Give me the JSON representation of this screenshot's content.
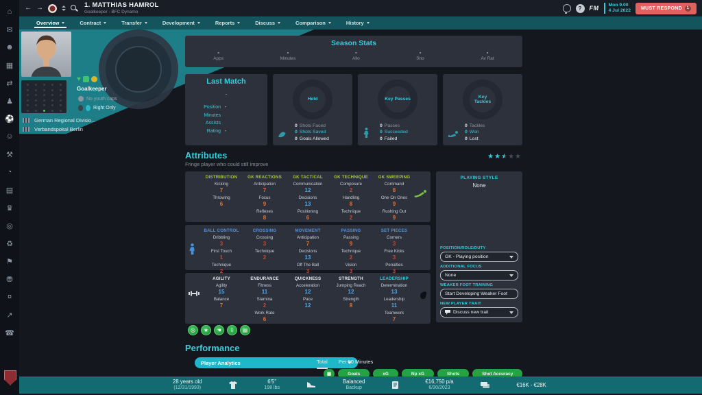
{
  "theme": {
    "accent_teal": "#35cdd8",
    "wedge_teal": "#1e7e87",
    "tabstrip_teal": "#14545c",
    "bottombar_teal": "#136b71",
    "card_bg": "#2c313c",
    "page_bg": "#14171e",
    "attr_low": "#c94732",
    "attr_mid": "#e0702f",
    "attr_high": "#4fa8e8",
    "must_respond_red": "#e2615e",
    "pill_green": "#25a244"
  },
  "header": {
    "title": "1. MATTHIAS HAMROL",
    "subtitle": "Goalkeeper - BFC Dynamo",
    "clock_line1": "Mon 9.00",
    "clock_line2": "4 Jul 2022",
    "must_respond": "MUST RESPOND",
    "must_respond_badge": "1",
    "fm_logo": "FM"
  },
  "nav_tabs": [
    "Overview",
    "Contract",
    "Transfer",
    "Development",
    "Reports",
    "Discuss",
    "Comparison",
    "History"
  ],
  "sidebar": {
    "icons": [
      {
        "name": "home",
        "glyph": "⌂"
      },
      {
        "name": "inbox",
        "glyph": "✉"
      },
      {
        "name": "squad",
        "glyph": "☻"
      },
      {
        "name": "tactics",
        "glyph": "▦"
      },
      {
        "name": "transfers",
        "glyph": "⇄"
      },
      {
        "name": "dynamics",
        "glyph": "♟"
      },
      {
        "name": "club",
        "glyph": "⚽"
      },
      {
        "name": "staff",
        "glyph": "☺"
      },
      {
        "name": "training",
        "glyph": "⚒"
      },
      {
        "name": "data-hub",
        "glyph": "◔"
      },
      {
        "name": "schedule",
        "glyph": "▤"
      },
      {
        "name": "competitions",
        "glyph": "♛"
      },
      {
        "name": "scouting",
        "glyph": "◎"
      },
      {
        "name": "world",
        "glyph": "♻"
      },
      {
        "name": "club-vision",
        "glyph": "⚑"
      },
      {
        "name": "finances",
        "glyph": "⛃"
      },
      {
        "name": "transactions",
        "glyph": "¤"
      },
      {
        "name": "analysis",
        "glyph": "↗"
      },
      {
        "name": "social",
        "glyph": "☎"
      }
    ]
  },
  "player_panel": {
    "position": "Goalkeeper",
    "youth_caps": "No youth caps",
    "foot": "Right Only",
    "status_icons": [
      {
        "name": "morale-heart-icon",
        "type": "heart"
      },
      {
        "name": "condition-icon",
        "type": "square"
      },
      {
        "name": "match-sharpness-icon",
        "type": "circle"
      }
    ],
    "competitions": [
      "German Regional Divisio...",
      "Verbandspokal Berlin"
    ]
  },
  "season_stats": {
    "title": "Season Stats",
    "items": [
      {
        "value": "-",
        "label": "Apps"
      },
      {
        "value": "-",
        "label": "Minutes"
      },
      {
        "value": "-",
        "label": "Allo"
      },
      {
        "value": "-",
        "label": "Sho"
      },
      {
        "value": "-",
        "label": "Av Rat"
      }
    ]
  },
  "last_match": {
    "title": "Last Match",
    "opponent": "-",
    "rows": [
      {
        "label": "Position",
        "value": "-"
      },
      {
        "label": "Minutes",
        "value": ""
      },
      {
        "label": "Assists",
        "value": ""
      },
      {
        "label": "Rating",
        "value": "-"
      }
    ]
  },
  "donut_cards": [
    {
      "title": "Held",
      "icon": "glove",
      "legend": [
        {
          "value": "0",
          "label": "Shots Faced",
          "tone": "muted"
        },
        {
          "value": "0",
          "label": "Shots Saved",
          "tone": "accent"
        },
        {
          "value": "0",
          "label": "Goals Allowed",
          "tone": "plain"
        }
      ]
    },
    {
      "title": "Key Passes",
      "icon": "player",
      "legend": [
        {
          "value": "0",
          "label": "Passes",
          "tone": "muted"
        },
        {
          "value": "0",
          "label": "Succeeded",
          "tone": "accent"
        },
        {
          "value": "0",
          "label": "Failed",
          "tone": "plain"
        }
      ]
    },
    {
      "title": "Key Tackles",
      "icon": "tackle",
      "legend": [
        {
          "value": "0",
          "label": "Tackles",
          "tone": "muted"
        },
        {
          "value": "0",
          "label": "Won",
          "tone": "accent"
        },
        {
          "value": "0",
          "label": "Lost",
          "tone": "plain"
        }
      ]
    }
  ],
  "attributes": {
    "title": "Attributes",
    "subtitle": "Fringe player who could still improve",
    "stars": 2.5,
    "blocks": [
      {
        "theme": "gk",
        "cls": "blk1",
        "icon_right": "diving-keeper-icon",
        "groups": [
          {
            "header": "DISTRIBUTION",
            "attrs": [
              [
                "Kicking",
                7
              ],
              [
                "Throwing",
                6
              ]
            ]
          },
          {
            "header": "GK REACTIONS",
            "attrs": [
              [
                "Anticipation",
                7
              ],
              [
                "Focus",
                9
              ],
              [
                "Reflexes",
                8
              ]
            ]
          },
          {
            "header": "GK TACTICAL",
            "attrs": [
              [
                "Communication",
                12
              ],
              [
                "Decisions",
                13
              ],
              [
                "Positioning",
                6
              ]
            ]
          },
          {
            "header": "GK TECHNIQUE",
            "attrs": [
              [
                "Composure",
                2
              ],
              [
                "Handling",
                8
              ],
              [
                "Technique",
                2
              ]
            ]
          },
          {
            "header": "GK SWEEPING",
            "attrs": [
              [
                "Command",
                8
              ],
              [
                "One On Ones",
                9
              ],
              [
                "Rushing Out",
                9
              ]
            ]
          }
        ]
      },
      {
        "theme": "tec",
        "cls": "blk2",
        "icon_left": "outfield-player-icon",
        "groups": [
          {
            "header": "BALL CONTROL",
            "attrs": [
              [
                "Dribbling",
                3
              ],
              [
                "First Touch",
                1
              ],
              [
                "Technique",
                2
              ]
            ]
          },
          {
            "header": "CROSSING",
            "attrs": [
              [
                "Crossing",
                3
              ],
              [
                "Technique",
                2
              ]
            ]
          },
          {
            "header": "MOVEMENT",
            "attrs": [
              [
                "Anticipation",
                7
              ],
              [
                "Decisions",
                13
              ],
              [
                "Off The Ball",
                3
              ]
            ]
          },
          {
            "header": "PASSING",
            "attrs": [
              [
                "Passing",
                9
              ],
              [
                "Technique",
                2
              ],
              [
                "Vision",
                3
              ]
            ]
          },
          {
            "header": "SET PIECES",
            "attrs": [
              [
                "Corners",
                3
              ],
              [
                "Free Kicks",
                3
              ],
              [
                "Penalties",
                3
              ]
            ]
          }
        ]
      },
      {
        "theme": "phy",
        "cls": "blk3",
        "icon_left": "dumbbell-icon",
        "icon_right": "fist-icon",
        "groups": [
          {
            "header": "AGILITY",
            "attrs": [
              [
                "Agility",
                15
              ],
              [
                "Balance",
                7
              ]
            ]
          },
          {
            "header": "ENDURANCE",
            "attrs": [
              [
                "Fitness",
                11
              ],
              [
                "Stamina",
                2
              ],
              [
                "Work Rate",
                6
              ]
            ]
          },
          {
            "header": "QUICKNESS",
            "attrs": [
              [
                "Acceleration",
                12
              ],
              [
                "Pace",
                12
              ]
            ]
          },
          {
            "header": "STRENGTH",
            "attrs": [
              [
                "Jumping Reach",
                12
              ],
              [
                "Strength",
                8
              ]
            ]
          },
          {
            "header": "LEADERSHIP",
            "accent": true,
            "attrs": [
              [
                "Determination",
                13
              ],
              [
                "Leadership",
                11
              ],
              [
                "Teamwork",
                7
              ]
            ]
          }
        ]
      }
    ]
  },
  "right_panel": {
    "playing_style_label": "PLAYING STYLE",
    "playing_style_value": "None",
    "controls": [
      {
        "label": "POSITION/ROLE/DUTY",
        "value": "GK - Playing position",
        "type": "select"
      },
      {
        "label": "ADDITIONAL FOCUS",
        "value": "None",
        "type": "select"
      },
      {
        "label": "WEAKER FOOT TRAINING",
        "value": "Start Developing Weaker Foot",
        "type": "button"
      },
      {
        "label": "NEW PLAYER TRAIT",
        "value": "Discuss new trait",
        "type": "select",
        "icon": "speech-bubble-icon"
      }
    ]
  },
  "badges": [
    {
      "name": "target-badge",
      "glyph": "◎"
    },
    {
      "name": "star-badge",
      "glyph": "★"
    },
    {
      "name": "glove-badge",
      "glyph": "☚"
    },
    {
      "name": "signing-badge",
      "glyph": "⇩"
    },
    {
      "name": "report-badge",
      "glyph": "▤"
    }
  ],
  "performance": {
    "title": "Performance",
    "dropdown": "Player Analytics",
    "tabs": [
      {
        "label": "Total",
        "active": true
      },
      {
        "label": "Per 90 Minutes",
        "active": false
      }
    ],
    "pills": [
      "Goals",
      "xG",
      "Np xG",
      "Shots",
      "Shot Accuracy"
    ]
  },
  "bottom_bar": {
    "items": [
      {
        "type": "text",
        "line1": "28 years old",
        "line2": "(12/31/1993)",
        "name": "age"
      },
      {
        "type": "icon",
        "icon": "shirt",
        "name": "shirt-icon"
      },
      {
        "type": "text",
        "line1": "6'5\"",
        "line2": "198 lbs",
        "name": "height-weight"
      },
      {
        "type": "icon",
        "icon": "boot",
        "name": "boot-icon"
      },
      {
        "type": "text",
        "line1": "Balanced",
        "line2": "Backup",
        "name": "style-status"
      },
      {
        "type": "icon",
        "icon": "contract",
        "name": "contract-icon"
      },
      {
        "type": "text",
        "line1": "€16,750 p/a",
        "line2": "6/30/2023",
        "name": "wage-expiry"
      },
      {
        "type": "icon",
        "icon": "cash",
        "name": "cash-icon"
      },
      {
        "type": "text",
        "line1": "€16K - €28K",
        "line2": "",
        "name": "transfer-value"
      }
    ]
  }
}
